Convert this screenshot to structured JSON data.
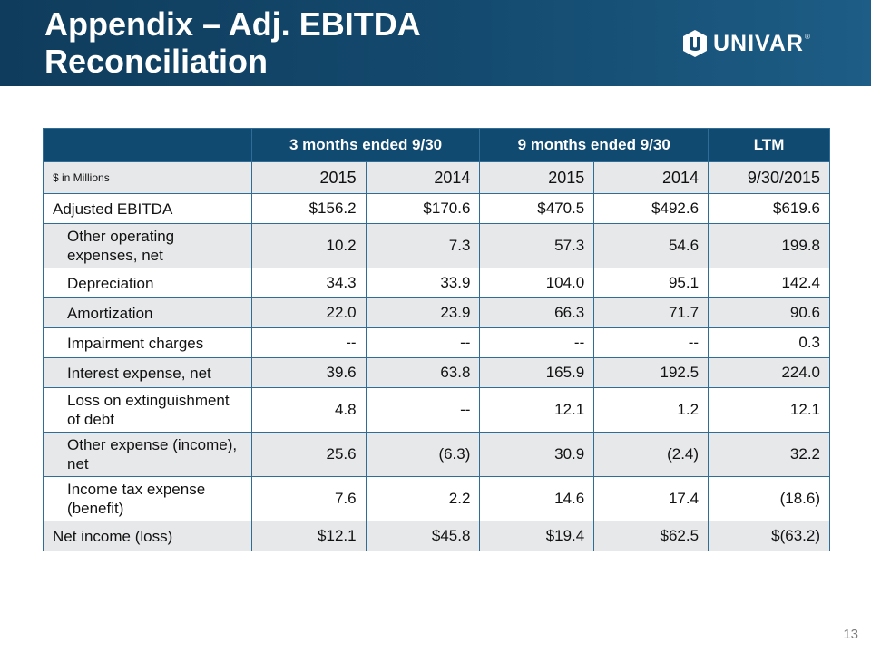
{
  "header": {
    "title_line1": "Appendix – Adj. EBITDA",
    "title_line2": "Reconciliation",
    "logo_text": "UNIVAR",
    "logo_reg": "®",
    "logo_icon": "univar-shield-icon"
  },
  "table": {
    "group_headers": [
      "3 months ended 9/30",
      "9 months ended 9/30",
      "LTM"
    ],
    "unit_label": "$ in Millions",
    "years": [
      "2015",
      "2014",
      "2015",
      "2014",
      "9/30/2015"
    ],
    "rows": [
      {
        "label": "Adjusted EBITDA",
        "values": [
          "$156.2",
          "$170.6",
          "$470.5",
          "$492.6",
          "$619.6"
        ]
      },
      {
        "label": "Other operating expenses, net",
        "values": [
          "10.2",
          "7.3",
          "57.3",
          "54.6",
          "199.8"
        ]
      },
      {
        "label": "Depreciation",
        "values": [
          "34.3",
          "33.9",
          "104.0",
          "95.1",
          "142.4"
        ]
      },
      {
        "label": "Amortization",
        "values": [
          "22.0",
          "23.9",
          "66.3",
          "71.7",
          "90.6"
        ]
      },
      {
        "label": "Impairment charges",
        "values": [
          "--",
          "--",
          "--",
          "--",
          "0.3"
        ]
      },
      {
        "label": "Interest expense, net",
        "values": [
          "39.6",
          "63.8",
          "165.9",
          "192.5",
          "224.0"
        ]
      },
      {
        "label": "Loss on extinguishment of debt",
        "values": [
          "4.8",
          "--",
          "12.1",
          "1.2",
          "12.1"
        ]
      },
      {
        "label": "Other expense (income), net",
        "values": [
          "25.6",
          "(6.3)",
          "30.9",
          "(2.4)",
          "32.2"
        ]
      },
      {
        "label": "Income tax expense (benefit)",
        "values": [
          "7.6",
          "2.2",
          "14.6",
          "17.4",
          "(18.6)"
        ]
      },
      {
        "label": "Net income (loss)",
        "values": [
          "$12.1",
          "$45.8",
          "$19.4",
          "$62.5",
          "$(63.2)"
        ]
      }
    ]
  },
  "page_number": "13",
  "colors": {
    "header_bg": "#144a6f",
    "table_header": "#104a70",
    "row_shade": "#e7e8ea",
    "border": "#2f6d97"
  }
}
